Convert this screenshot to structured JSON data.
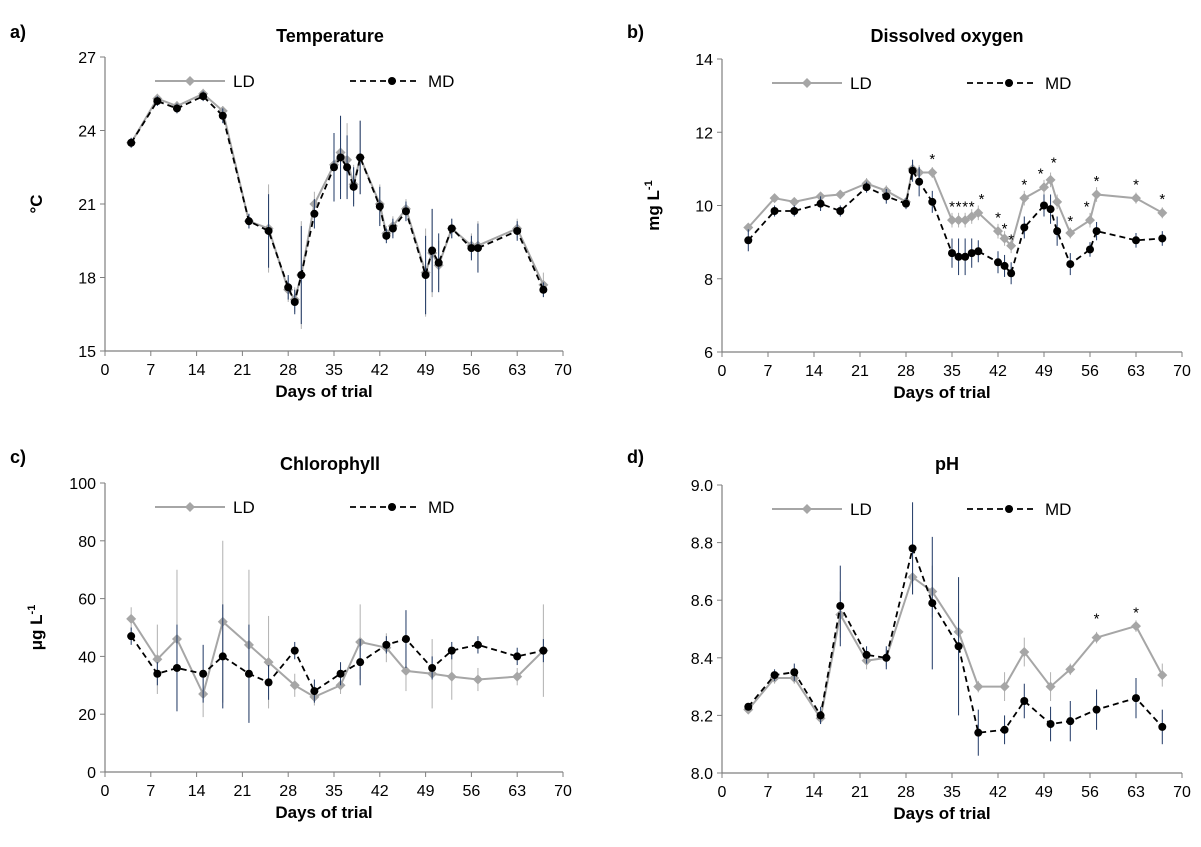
{
  "chart_data": [
    {
      "panel": "a)",
      "type": "line",
      "title": "Temperature",
      "xlabel": "Days of trial",
      "ylabel": "°C",
      "xlim": [
        0,
        70
      ],
      "ylim": [
        15,
        27
      ],
      "xticks": [
        "0",
        "7",
        "14",
        "21",
        "28",
        "35",
        "42",
        "49",
        "56",
        "63",
        "70"
      ],
      "yticks": [
        "15",
        "18",
        "21",
        "24",
        "27"
      ],
      "grid": false,
      "legend": "top",
      "series": [
        {
          "name": "LD",
          "color": "#a6a6a6",
          "x": [
            4,
            8,
            11,
            15,
            18,
            22,
            25,
            28,
            29,
            30,
            32,
            35,
            36,
            37,
            38,
            39,
            42,
            43,
            44,
            46,
            49,
            50,
            51,
            53,
            56,
            57,
            63,
            67
          ],
          "y": [
            23.5,
            25.3,
            25.0,
            25.5,
            24.8,
            20.3,
            20.0,
            17.5,
            17.1,
            18.1,
            21.0,
            22.6,
            23.1,
            22.8,
            21.8,
            22.9,
            21.0,
            19.8,
            20.1,
            20.8,
            18.2,
            19.0,
            18.5,
            20.0,
            19.3,
            19.3,
            20.0,
            17.7
          ],
          "err": [
            0.2,
            0.2,
            0.2,
            0.2,
            0.2,
            0.3,
            1.8,
            0.5,
            0.5,
            2.2,
            0.5,
            1.2,
            1.5,
            1.5,
            0.8,
            1.5,
            0.8,
            0.3,
            0.4,
            0.4,
            1.8,
            1.8,
            1.0,
            0.4,
            0.5,
            1.0,
            0.4,
            0.5
          ]
        },
        {
          "name": "MD",
          "color": "#000000",
          "x": [
            4,
            8,
            11,
            15,
            18,
            22,
            25,
            28,
            29,
            30,
            32,
            35,
            36,
            37,
            38,
            39,
            42,
            43,
            44,
            46,
            49,
            50,
            51,
            53,
            56,
            57,
            63,
            67
          ],
          "y": [
            23.5,
            25.2,
            24.9,
            25.4,
            24.6,
            20.3,
            19.9,
            17.6,
            17.0,
            18.1,
            20.6,
            22.5,
            22.9,
            22.5,
            21.7,
            22.9,
            20.9,
            19.7,
            20.0,
            20.7,
            18.1,
            19.1,
            18.6,
            20.0,
            19.2,
            19.2,
            19.9,
            17.5
          ],
          "err": [
            0.2,
            0.2,
            0.2,
            0.2,
            0.3,
            0.3,
            1.5,
            0.5,
            0.5,
            2.0,
            0.6,
            1.4,
            1.7,
            1.3,
            0.8,
            1.5,
            0.8,
            0.3,
            0.4,
            0.4,
            1.6,
            1.7,
            1.2,
            0.4,
            0.5,
            1.0,
            0.4,
            0.3
          ]
        }
      ],
      "annotations": []
    },
    {
      "panel": "b)",
      "type": "line",
      "title": "Dissolved  oxygen",
      "xlabel": "Days of trial",
      "ylabel": "mg L",
      "ylabel_sup": "-1",
      "xlim": [
        0,
        70
      ],
      "ylim": [
        6,
        14
      ],
      "xticks": [
        "0",
        "7",
        "14",
        "21",
        "28",
        "35",
        "42",
        "49",
        "56",
        "63",
        "70"
      ],
      "yticks": [
        "6",
        "8",
        "10",
        "12",
        "14"
      ],
      "grid": false,
      "legend": "top",
      "series": [
        {
          "name": "LD",
          "color": "#a6a6a6",
          "x": [
            4,
            8,
            11,
            15,
            18,
            22,
            25,
            28,
            29,
            30,
            32,
            35,
            36,
            37,
            38,
            39,
            42,
            43,
            44,
            46,
            49,
            50,
            51,
            53,
            56,
            57,
            63,
            67
          ],
          "y": [
            9.4,
            10.2,
            10.1,
            10.25,
            10.3,
            10.6,
            10.4,
            10.1,
            11.0,
            10.9,
            10.9,
            9.6,
            9.6,
            9.6,
            9.7,
            9.8,
            9.3,
            9.1,
            8.9,
            10.2,
            10.5,
            10.7,
            10.1,
            9.25,
            9.6,
            10.3,
            10.2,
            9.8
          ],
          "err": [
            0.1,
            0.1,
            0.1,
            0.1,
            0.1,
            0.15,
            0.15,
            0.1,
            0.2,
            0.2,
            0.15,
            0.2,
            0.2,
            0.2,
            0.2,
            0.2,
            0.2,
            0.2,
            0.2,
            0.2,
            0.2,
            0.2,
            0.2,
            0.15,
            0.2,
            0.2,
            0.15,
            0.15
          ]
        },
        {
          "name": "MD",
          "color": "#000000",
          "x": [
            4,
            8,
            11,
            15,
            18,
            22,
            25,
            28,
            29,
            30,
            32,
            35,
            36,
            37,
            38,
            39,
            42,
            43,
            44,
            46,
            49,
            50,
            51,
            53,
            56,
            57,
            63,
            67
          ],
          "y": [
            9.05,
            9.85,
            9.85,
            10.05,
            9.85,
            10.5,
            10.25,
            10.05,
            10.95,
            10.65,
            10.1,
            8.7,
            8.6,
            8.6,
            8.7,
            8.75,
            8.45,
            8.35,
            8.15,
            9.4,
            10.0,
            9.9,
            9.3,
            8.4,
            8.8,
            9.3,
            9.05,
            9.1
          ],
          "err": [
            0.3,
            0.15,
            0.15,
            0.2,
            0.15,
            0.15,
            0.2,
            0.15,
            0.3,
            0.4,
            0.3,
            0.4,
            0.5,
            0.5,
            0.4,
            0.3,
            0.3,
            0.3,
            0.3,
            0.3,
            0.3,
            0.4,
            0.4,
            0.3,
            0.2,
            0.25,
            0.2,
            0.2
          ]
        }
      ],
      "annotations": [
        {
          "x": 32,
          "y": 11.3,
          "text": "*"
        },
        {
          "x": 35,
          "y": 10.0,
          "text": "*"
        },
        {
          "x": 36,
          "y": 10.0,
          "text": "*"
        },
        {
          "x": 37,
          "y": 10.0,
          "text": "*"
        },
        {
          "x": 38,
          "y": 10.0,
          "text": "*"
        },
        {
          "x": 39.5,
          "y": 10.2,
          "text": "*"
        },
        {
          "x": 42,
          "y": 9.7,
          "text": "*"
        },
        {
          "x": 43,
          "y": 9.4,
          "text": "*"
        },
        {
          "x": 44,
          "y": 9.1,
          "text": "*"
        },
        {
          "x": 46,
          "y": 10.6,
          "text": "*"
        },
        {
          "x": 48.5,
          "y": 10.9,
          "text": "*"
        },
        {
          "x": 50.5,
          "y": 11.2,
          "text": "*"
        },
        {
          "x": 53,
          "y": 9.6,
          "text": "*"
        },
        {
          "x": 55.5,
          "y": 10.0,
          "text": "*"
        },
        {
          "x": 57,
          "y": 10.7,
          "text": "*"
        },
        {
          "x": 63,
          "y": 10.6,
          "text": "*"
        },
        {
          "x": 67,
          "y": 10.2,
          "text": "*"
        }
      ]
    },
    {
      "panel": "c)",
      "type": "line",
      "title": "Chlorophyll",
      "xlabel": "Days of trial",
      "ylabel": "μg L",
      "ylabel_sup": "-1",
      "xlim": [
        0,
        70
      ],
      "ylim": [
        0,
        100
      ],
      "xticks": [
        "0",
        "7",
        "14",
        "21",
        "28",
        "35",
        "42",
        "49",
        "56",
        "63",
        "70"
      ],
      "yticks": [
        "0",
        "20",
        "40",
        "60",
        "80",
        "100"
      ],
      "grid": false,
      "legend": "top",
      "series": [
        {
          "name": "LD",
          "color": "#a6a6a6",
          "x": [
            4,
            8,
            11,
            15,
            18,
            22,
            25,
            29,
            32,
            36,
            39,
            43,
            46,
            50,
            53,
            57,
            63,
            67
          ],
          "y": [
            53,
            39,
            46,
            27,
            52,
            44,
            38,
            30,
            26,
            30,
            45,
            43,
            35,
            34,
            33,
            32,
            33,
            42
          ],
          "err": [
            4,
            12,
            24,
            8,
            28,
            26,
            16,
            4,
            3,
            3,
            13,
            5,
            7,
            12,
            8,
            4,
            3,
            16
          ]
        },
        {
          "name": "MD",
          "color": "#000000",
          "x": [
            4,
            8,
            11,
            15,
            18,
            22,
            25,
            29,
            32,
            36,
            39,
            43,
            46,
            50,
            53,
            57,
            63,
            67
          ],
          "y": [
            47,
            34,
            36,
            34,
            40,
            34,
            31,
            42,
            28,
            34,
            38,
            44,
            46,
            36,
            42,
            44,
            40,
            42
          ],
          "err": [
            3,
            4,
            15,
            10,
            18,
            17,
            6,
            3,
            4,
            4,
            8,
            3,
            10,
            4,
            3,
            3,
            3,
            4
          ]
        }
      ],
      "annotations": []
    },
    {
      "panel": "d)",
      "type": "line",
      "title": "pH",
      "xlabel": "Days of trial",
      "ylabel": "",
      "xlim": [
        0,
        70
      ],
      "ylim": [
        8.0,
        9.0
      ],
      "xticks": [
        "0",
        "7",
        "14",
        "21",
        "28",
        "35",
        "42",
        "49",
        "56",
        "63",
        "70"
      ],
      "yticks": [
        "8.0",
        "8.2",
        "8.4",
        "8.6",
        "8.8",
        "9.0"
      ],
      "grid": false,
      "legend": "top",
      "series": [
        {
          "name": "LD",
          "color": "#a6a6a6",
          "x": [
            4,
            8,
            11,
            15,
            18,
            22,
            25,
            29,
            32,
            36,
            39,
            43,
            46,
            50,
            53,
            57,
            63,
            67
          ],
          "y": [
            8.22,
            8.33,
            8.33,
            8.19,
            8.55,
            8.39,
            8.4,
            8.68,
            8.63,
            8.49,
            8.3,
            8.3,
            8.42,
            8.3,
            8.36,
            8.47,
            8.51,
            8.34
          ],
          "err": [
            0.01,
            0.02,
            0.02,
            0.02,
            0.08,
            0.03,
            0.03,
            0.06,
            0.09,
            0.1,
            0.02,
            0.05,
            0.05,
            0.05,
            0.02,
            0.02,
            0.02,
            0.04
          ]
        },
        {
          "name": "MD",
          "color": "#000000",
          "x": [
            4,
            8,
            11,
            15,
            18,
            22,
            25,
            29,
            32,
            36,
            39,
            43,
            46,
            50,
            53,
            57,
            63,
            67
          ],
          "y": [
            8.23,
            8.34,
            8.35,
            8.2,
            8.58,
            8.41,
            8.4,
            8.78,
            8.59,
            8.44,
            8.14,
            8.15,
            8.25,
            8.17,
            8.18,
            8.22,
            8.26,
            8.16
          ],
          "err": [
            0.01,
            0.02,
            0.03,
            0.03,
            0.14,
            0.03,
            0.04,
            0.16,
            0.23,
            0.24,
            0.08,
            0.05,
            0.06,
            0.06,
            0.07,
            0.07,
            0.07,
            0.06
          ]
        }
      ],
      "annotations": [
        {
          "x": 57,
          "y": 8.54,
          "text": "*"
        },
        {
          "x": 63,
          "y": 8.56,
          "text": "*"
        }
      ]
    }
  ]
}
